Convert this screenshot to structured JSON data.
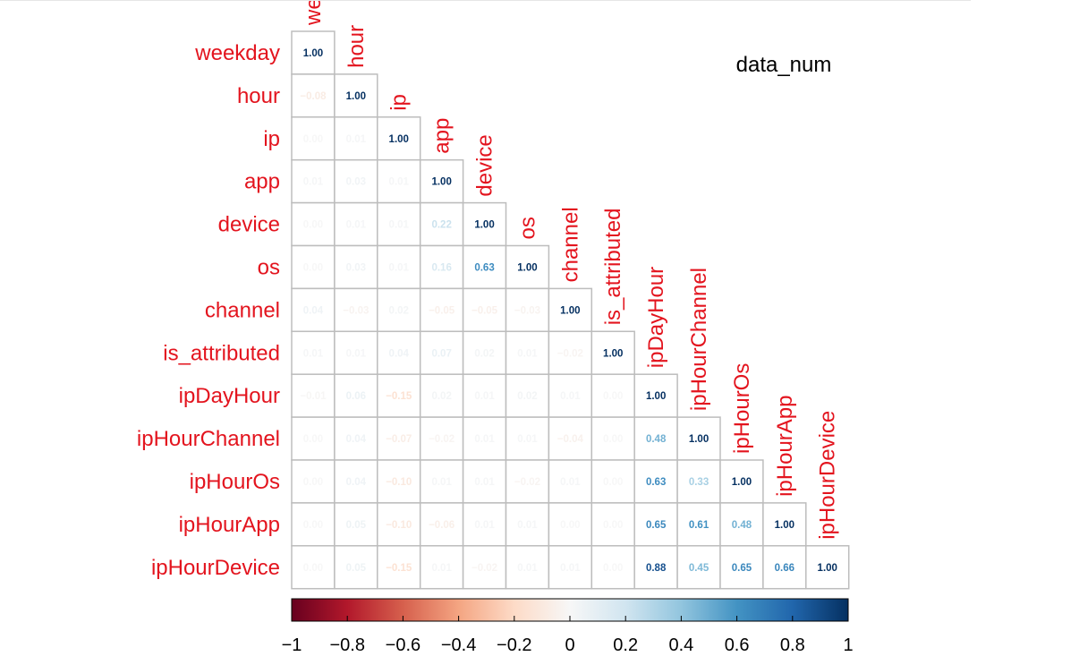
{
  "chart_data": {
    "type": "heatmap",
    "title": "data_num",
    "layout": "lower-triangle",
    "variables": [
      "weekday",
      "hour",
      "ip",
      "app",
      "device",
      "os",
      "channel",
      "is_attributed",
      "ipDayHour",
      "ipHourChannel",
      "ipHourOs",
      "ipHourApp",
      "ipHourDevice"
    ],
    "matrix": [
      [
        1.0
      ],
      [
        -0.08,
        1.0
      ],
      [
        0.0,
        0.01,
        1.0
      ],
      [
        0.01,
        0.03,
        0.01,
        1.0
      ],
      [
        0.0,
        0.01,
        0.01,
        0.22,
        1.0
      ],
      [
        0.0,
        0.03,
        0.01,
        0.16,
        0.63,
        1.0
      ],
      [
        0.04,
        -0.03,
        0.02,
        -0.05,
        -0.05,
        -0.03,
        1.0
      ],
      [
        0.01,
        0.01,
        0.04,
        0.07,
        0.02,
        0.01,
        -0.02,
        1.0
      ],
      [
        -0.01,
        0.06,
        -0.15,
        0.02,
        0.01,
        0.02,
        0.01,
        0.0,
        1.0
      ],
      [
        0.0,
        0.04,
        -0.07,
        -0.02,
        0.01,
        0.01,
        -0.04,
        0.0,
        0.48,
        1.0
      ],
      [
        0.0,
        0.04,
        -0.1,
        0.01,
        0.01,
        -0.02,
        0.01,
        0.0,
        0.63,
        0.33,
        1.0
      ],
      [
        0.0,
        0.05,
        -0.1,
        -0.06,
        0.01,
        0.01,
        0.0,
        0.0,
        0.65,
        0.61,
        0.48,
        1.0
      ],
      [
        0.0,
        0.05,
        -0.15,
        0.01,
        -0.02,
        0.01,
        0.01,
        0.0,
        0.88,
        0.45,
        0.65,
        0.66,
        1.0
      ]
    ],
    "colorbar": {
      "range": [
        -1,
        1
      ],
      "ticks": [
        "−1",
        "−0.8",
        "−0.6",
        "−0.4",
        "−0.2",
        "0",
        "0.2",
        "0.4",
        "0.6",
        "0.8",
        "1"
      ],
      "low_color": "#67001F",
      "mid_color": "#F7F7F7",
      "high_color": "#053061"
    },
    "label_color": "#e3141e",
    "grid_color": "#bdbdbd"
  }
}
